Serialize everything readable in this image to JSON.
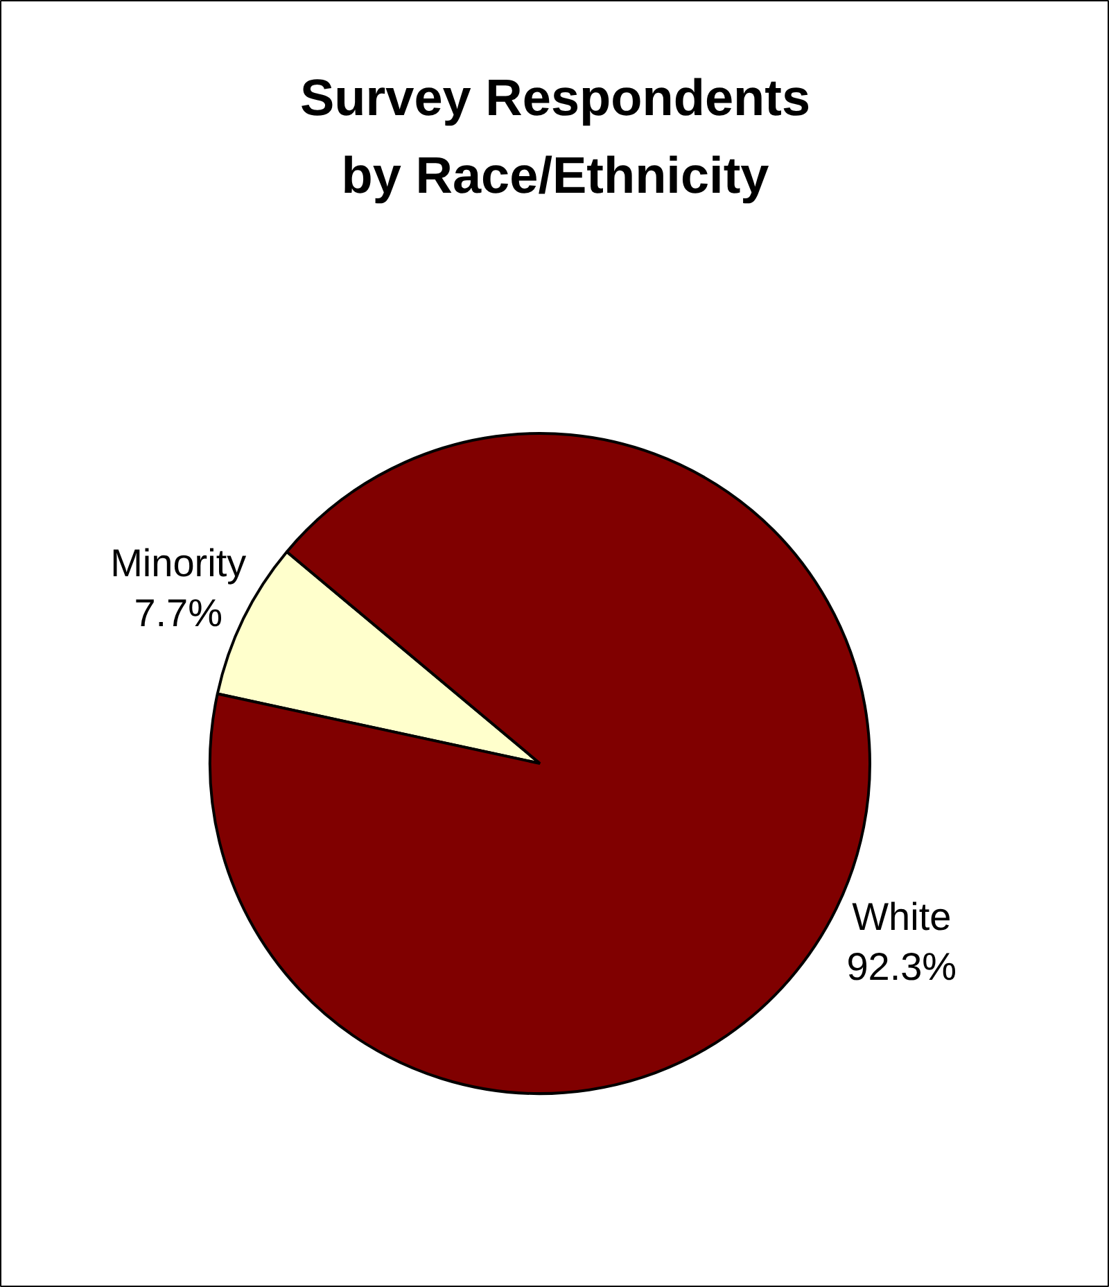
{
  "chart_data": {
    "type": "pie",
    "title": "Survey Respondents\nby Race/Ethnicity",
    "categories": [
      "Minority",
      "White"
    ],
    "values": [
      7.7,
      92.3
    ],
    "value_labels": [
      "7.7%",
      "92.3%"
    ],
    "colors": [
      "#ffffcc",
      "#800000"
    ]
  }
}
